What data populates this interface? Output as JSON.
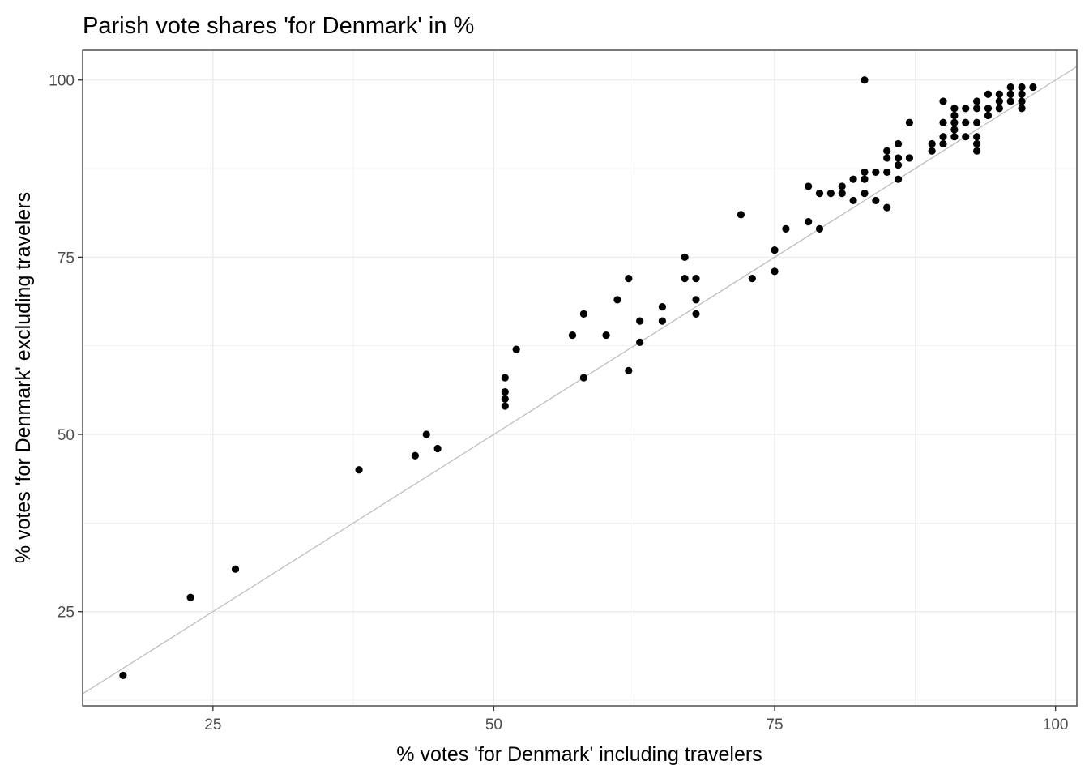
{
  "chart_data": {
    "type": "scatter",
    "title": "Parish vote shares 'for Denmark' in %",
    "xlabel": "% votes 'for Denmark' including travelers",
    "ylabel": "% votes 'for Denmark' excluding travelers",
    "xlim": [
      13.4,
      101.9
    ],
    "ylim": [
      11.7,
      104.2
    ],
    "x_ticks": [
      25,
      50,
      75,
      100
    ],
    "y_ticks": [
      25,
      50,
      75,
      100
    ],
    "grid": true,
    "reference_line": {
      "type": "identity",
      "slope": 1,
      "intercept": 0,
      "color": "#bebebe"
    },
    "colors": {
      "points": "#000000",
      "grid": "#ebebeb",
      "panel_border": "#333333",
      "tick_label": "#4d4d4d"
    },
    "points": [
      {
        "x": 17,
        "y": 16
      },
      {
        "x": 23,
        "y": 27
      },
      {
        "x": 27,
        "y": 31
      },
      {
        "x": 38,
        "y": 45
      },
      {
        "x": 43,
        "y": 47
      },
      {
        "x": 44,
        "y": 50
      },
      {
        "x": 45,
        "y": 48
      },
      {
        "x": 51,
        "y": 58
      },
      {
        "x": 51,
        "y": 56
      },
      {
        "x": 51,
        "y": 55
      },
      {
        "x": 51,
        "y": 54
      },
      {
        "x": 52,
        "y": 62
      },
      {
        "x": 57,
        "y": 64
      },
      {
        "x": 58,
        "y": 67
      },
      {
        "x": 58,
        "y": 58
      },
      {
        "x": 60,
        "y": 64
      },
      {
        "x": 61,
        "y": 69
      },
      {
        "x": 62,
        "y": 72
      },
      {
        "x": 62,
        "y": 59
      },
      {
        "x": 63,
        "y": 66
      },
      {
        "x": 63,
        "y": 63
      },
      {
        "x": 65,
        "y": 68
      },
      {
        "x": 65,
        "y": 66
      },
      {
        "x": 67,
        "y": 75
      },
      {
        "x": 67,
        "y": 72
      },
      {
        "x": 68,
        "y": 72
      },
      {
        "x": 68,
        "y": 69
      },
      {
        "x": 68,
        "y": 67
      },
      {
        "x": 72,
        "y": 81
      },
      {
        "x": 73,
        "y": 72
      },
      {
        "x": 75,
        "y": 76
      },
      {
        "x": 75,
        "y": 73
      },
      {
        "x": 76,
        "y": 79
      },
      {
        "x": 78,
        "y": 85
      },
      {
        "x": 78,
        "y": 80
      },
      {
        "x": 79,
        "y": 84
      },
      {
        "x": 79,
        "y": 79
      },
      {
        "x": 80,
        "y": 84
      },
      {
        "x": 81,
        "y": 85
      },
      {
        "x": 81,
        "y": 84
      },
      {
        "x": 82,
        "y": 86
      },
      {
        "x": 82,
        "y": 83
      },
      {
        "x": 83,
        "y": 100
      },
      {
        "x": 83,
        "y": 87
      },
      {
        "x": 83,
        "y": 86
      },
      {
        "x": 83,
        "y": 84
      },
      {
        "x": 84,
        "y": 87
      },
      {
        "x": 84,
        "y": 83
      },
      {
        "x": 85,
        "y": 90
      },
      {
        "x": 85,
        "y": 89
      },
      {
        "x": 85,
        "y": 87
      },
      {
        "x": 85,
        "y": 82
      },
      {
        "x": 86,
        "y": 91
      },
      {
        "x": 86,
        "y": 89
      },
      {
        "x": 86,
        "y": 88
      },
      {
        "x": 86,
        "y": 86
      },
      {
        "x": 87,
        "y": 94
      },
      {
        "x": 87,
        "y": 89
      },
      {
        "x": 89,
        "y": 91
      },
      {
        "x": 89,
        "y": 90
      },
      {
        "x": 90,
        "y": 97
      },
      {
        "x": 90,
        "y": 94
      },
      {
        "x": 90,
        "y": 92
      },
      {
        "x": 90,
        "y": 91
      },
      {
        "x": 91,
        "y": 96
      },
      {
        "x": 91,
        "y": 95
      },
      {
        "x": 91,
        "y": 94
      },
      {
        "x": 91,
        "y": 93
      },
      {
        "x": 91,
        "y": 92
      },
      {
        "x": 92,
        "y": 96
      },
      {
        "x": 92,
        "y": 94
      },
      {
        "x": 92,
        "y": 92
      },
      {
        "x": 93,
        "y": 97
      },
      {
        "x": 93,
        "y": 96
      },
      {
        "x": 93,
        "y": 94
      },
      {
        "x": 93,
        "y": 92
      },
      {
        "x": 93,
        "y": 91
      },
      {
        "x": 93,
        "y": 90
      },
      {
        "x": 94,
        "y": 98
      },
      {
        "x": 94,
        "y": 96
      },
      {
        "x": 94,
        "y": 95
      },
      {
        "x": 95,
        "y": 98
      },
      {
        "x": 95,
        "y": 97
      },
      {
        "x": 95,
        "y": 96
      },
      {
        "x": 96,
        "y": 99
      },
      {
        "x": 96,
        "y": 98
      },
      {
        "x": 96,
        "y": 97
      },
      {
        "x": 97,
        "y": 99
      },
      {
        "x": 97,
        "y": 98
      },
      {
        "x": 97,
        "y": 97
      },
      {
        "x": 97,
        "y": 96
      },
      {
        "x": 98,
        "y": 99
      }
    ]
  }
}
